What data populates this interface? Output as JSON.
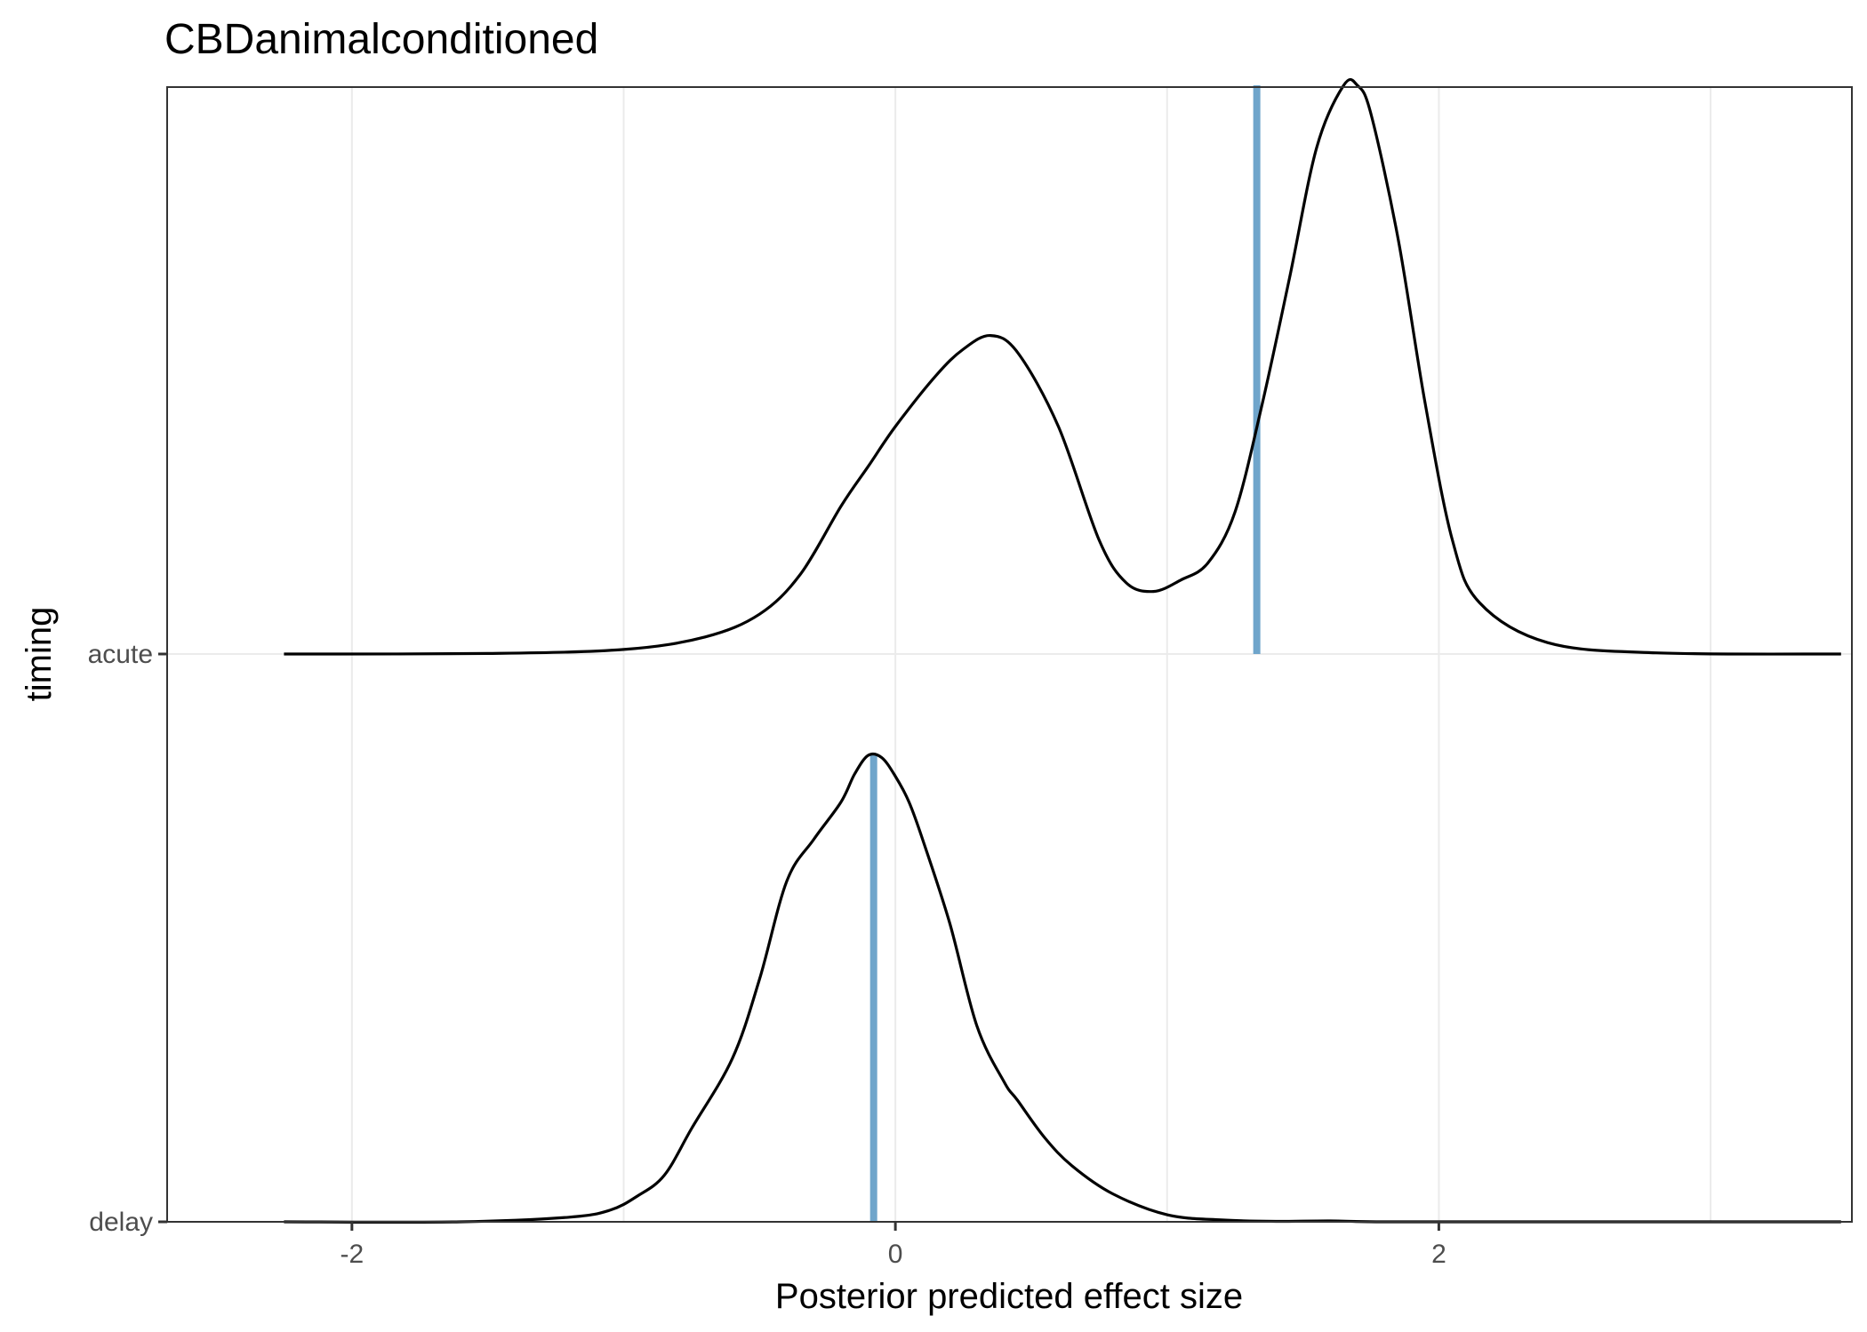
{
  "chart_data": {
    "type": "ridgeline",
    "title": "CBDanimalconditioned",
    "xlabel": "Posterior predicted effect size",
    "ylabel": "timing",
    "xlim": [
      -2.68,
      3.52
    ],
    "x_ticks": [
      -2,
      0,
      2
    ],
    "x_tick_labels": [
      "-2",
      "0",
      "2"
    ],
    "grid": true,
    "marker_color": "#6fa5cb",
    "line_color": "#000000",
    "series": [
      {
        "name": "delay",
        "median": -0.08,
        "x": [
          -2.25,
          -1.6,
          -1.2,
          -1.05,
          -0.95,
          -0.85,
          -0.75,
          -0.6,
          -0.5,
          -0.4,
          -0.3,
          -0.2,
          -0.15,
          -0.1,
          -0.05,
          0.0,
          0.05,
          0.1,
          0.2,
          0.3,
          0.4,
          0.45,
          0.55,
          0.65,
          0.8,
          1.0,
          1.2,
          1.4,
          1.6,
          1.8,
          2.5,
          3.48
        ],
        "density": [
          0.0,
          0.0,
          0.01,
          0.025,
          0.055,
          0.1,
          0.2,
          0.35,
          0.52,
          0.73,
          0.82,
          0.9,
          0.96,
          1.0,
          0.995,
          0.955,
          0.9,
          0.82,
          0.64,
          0.42,
          0.3,
          0.26,
          0.18,
          0.12,
          0.06,
          0.015,
          0.004,
          0.001,
          0.002,
          0.0,
          0.0,
          0.0
        ]
      },
      {
        "name": "acute",
        "median": 1.33,
        "x": [
          -2.25,
          -1.5,
          -1.0,
          -0.7,
          -0.5,
          -0.35,
          -0.2,
          -0.1,
          0.0,
          0.15,
          0.25,
          0.35,
          0.45,
          0.6,
          0.75,
          0.85,
          0.95,
          1.05,
          1.15,
          1.25,
          1.35,
          1.45,
          1.55,
          1.65,
          1.7,
          1.75,
          1.85,
          1.95,
          2.05,
          2.15,
          2.4,
          2.8,
          3.48
        ],
        "density": [
          0.0,
          0.001,
          0.008,
          0.03,
          0.07,
          0.14,
          0.26,
          0.33,
          0.4,
          0.49,
          0.536,
          0.56,
          0.53,
          0.4,
          0.2,
          0.125,
          0.11,
          0.13,
          0.16,
          0.25,
          0.44,
          0.66,
          0.89,
          1.0,
          1.0,
          0.95,
          0.73,
          0.44,
          0.2,
          0.09,
          0.02,
          0.002,
          0.0
        ]
      }
    ]
  }
}
